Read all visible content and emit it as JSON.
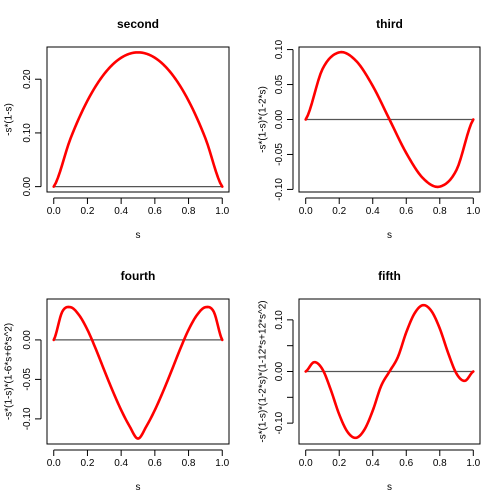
{
  "chart_data": [
    {
      "type": "line",
      "title": "second",
      "xlabel": "s",
      "ylabel": "-s*(1-s)",
      "xlim": [
        0,
        1
      ],
      "ylim": [
        0,
        0.25
      ],
      "xticks": [
        0,
        0.2,
        0.4,
        0.6,
        0.8,
        1
      ],
      "xtick_labels": [
        "0.0",
        "0.2",
        "0.4",
        "0.6",
        "0.8",
        "1.0"
      ],
      "yticks": [
        0,
        0.1,
        0.2
      ],
      "ytick_labels": [
        "0.00",
        "0.10",
        "0.20"
      ],
      "reference_line": 0,
      "series": [
        {
          "color": "#ff0000",
          "x": [
            0,
            0.1,
            0.2,
            0.3,
            0.4,
            0.5,
            0.6,
            0.7,
            0.8,
            0.9,
            1.0
          ],
          "values": [
            0,
            0.09,
            0.16,
            0.21,
            0.24,
            0.25,
            0.24,
            0.21,
            0.16,
            0.09,
            0
          ]
        }
      ]
    },
    {
      "type": "line",
      "title": "third",
      "xlabel": "s",
      "ylabel": "-s*(1-s)*(1-2*s)",
      "xlim": [
        0,
        1
      ],
      "ylim": [
        -0.096,
        0.096
      ],
      "xticks": [
        0,
        0.2,
        0.4,
        0.6,
        0.8,
        1
      ],
      "xtick_labels": [
        "0.0",
        "0.2",
        "0.4",
        "0.6",
        "0.8",
        "1.0"
      ],
      "yticks": [
        -0.1,
        -0.05,
        0,
        0.05,
        0.1
      ],
      "ytick_labels": [
        "-0.10",
        "-0.05",
        "0.00",
        "0.05",
        "0.10"
      ],
      "reference_line": 0,
      "series": [
        {
          "color": "#ff0000",
          "x": [
            0,
            0.1,
            0.2,
            0.3,
            0.4,
            0.5,
            0.6,
            0.7,
            0.8,
            0.9,
            1.0
          ],
          "values": [
            0,
            0.072,
            0.096,
            0.084,
            0.048,
            0,
            -0.048,
            -0.084,
            -0.096,
            -0.072,
            0
          ]
        }
      ]
    },
    {
      "type": "line",
      "title": "fourth",
      "xlabel": "s",
      "ylabel": "-s*(1-s)*(1-6*s+6*s^2)",
      "xlim": [
        0,
        1
      ],
      "ylim": [
        -0.125,
        0.045
      ],
      "xticks": [
        0,
        0.2,
        0.4,
        0.6,
        0.8,
        1
      ],
      "xtick_labels": [
        "0.0",
        "0.2",
        "0.4",
        "0.6",
        "0.8",
        "1.0"
      ],
      "yticks": [
        -0.1,
        -0.05,
        0
      ],
      "ytick_labels": [
        "-0.10",
        "-0.05",
        "0.00"
      ],
      "reference_line": 0,
      "series": [
        {
          "color": "#ff0000",
          "x": [
            0,
            0.05,
            0.1,
            0.15,
            0.2,
            0.25,
            0.3,
            0.35,
            0.4,
            0.45,
            0.5,
            0.55,
            0.6,
            0.65,
            0.7,
            0.75,
            0.8,
            0.85,
            0.9,
            0.95,
            1.0
          ],
          "values": [
            0,
            0.0355,
            0.0414,
            0.0315,
            0.0128,
            -0.0117,
            -0.0386,
            -0.0647,
            -0.0888,
            -0.1093,
            -0.125,
            -0.1093,
            -0.0888,
            -0.0647,
            -0.0386,
            -0.0117,
            0.0128,
            0.0315,
            0.0414,
            0.0355,
            0
          ]
        }
      ]
    },
    {
      "type": "line",
      "title": "fifth",
      "xlabel": "s",
      "ylabel": "-s*(1-s)*(1-2*s)*(1-12*s+12*s^2)",
      "xlim": [
        0,
        1
      ],
      "ylim": [
        -0.13,
        0.13
      ],
      "xticks": [
        0,
        0.2,
        0.4,
        0.6,
        0.8,
        1
      ],
      "xtick_labels": [
        "0.0",
        "0.2",
        "0.4",
        "0.6",
        "0.8",
        "1.0"
      ],
      "yticks": [
        -0.1,
        -0.05,
        0,
        0.05,
        0.1
      ],
      "ytick_labels": [
        "-0.10",
        "",
        "0.00",
        "",
        "0.10"
      ],
      "reference_line": 0,
      "series": [
        {
          "color": "#ff0000",
          "x": [
            0,
            0.05,
            0.1,
            0.15,
            0.2,
            0.25,
            0.3,
            0.35,
            0.4,
            0.45,
            0.5,
            0.55,
            0.6,
            0.65,
            0.7,
            0.75,
            0.8,
            0.85,
            0.9,
            0.95,
            1.0
          ],
          "values": [
            0,
            0.0181,
            0.0043,
            -0.0358,
            -0.0832,
            -0.1172,
            -0.1285,
            -0.1128,
            -0.0758,
            -0.028,
            0,
            0.028,
            0.0758,
            0.1128,
            0.1285,
            0.1172,
            0.0832,
            0.0358,
            -0.0043,
            -0.0181,
            0
          ]
        }
      ]
    }
  ]
}
